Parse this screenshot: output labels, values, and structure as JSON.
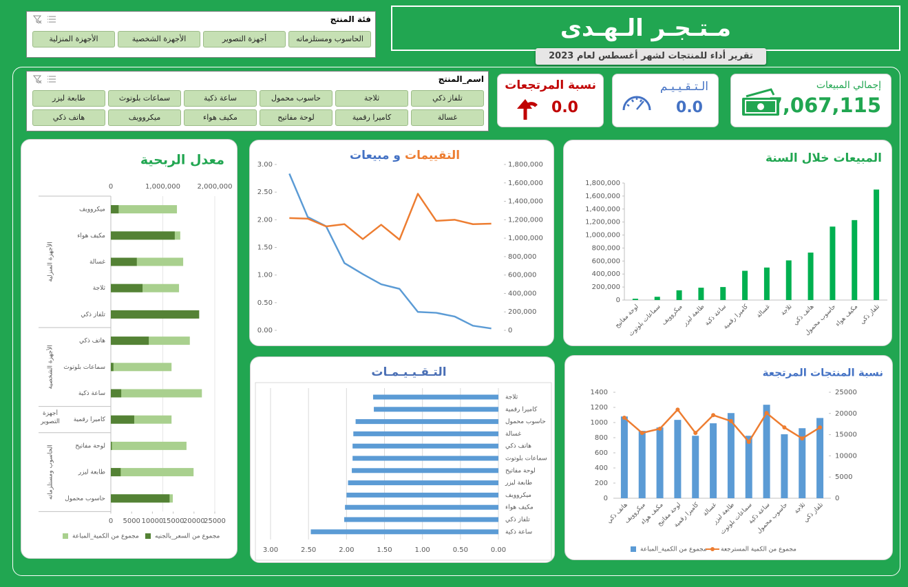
{
  "header": {
    "title": "مـتـجـر الـهـدى",
    "subtitle": "تقرير أداء للمنتجات لشهر أغسطس لعام 2023"
  },
  "slicers": [
    {
      "title": "فئة المنتج",
      "items": [
        "الحاسوب ومستلزماته",
        "أجهزة التصوير",
        "الأجهزة الشخصية",
        "الأجهزة المنزلية"
      ]
    },
    {
      "title": "اسم_المنتج",
      "items": [
        "تلفاز ذكي",
        "ثلاجة",
        "حاسوب محمول",
        "ساعة ذكية",
        "سماعات بلوتوث",
        "طابعة ليزر",
        "غسالة",
        "كاميرا رقمية",
        "لوحة مفاتيح",
        "مكيف هواء",
        "ميكروويف",
        "هاتف ذكي"
      ]
    }
  ],
  "kpis": [
    {
      "label": "إجمالي المبيعات",
      "value": "7,067,115"
    },
    {
      "label": "الـتـقـيـيـم",
      "value": "0.0"
    },
    {
      "label": "نسبة المرتجعات",
      "value": "0.0"
    }
  ],
  "chart_data": [
    {
      "type": "bar",
      "title": "المبيعات خلال السنة",
      "title_color": "#21a651",
      "categories": [
        "لوحة مفاتيح",
        "سماعات بلوتوث",
        "ميكروويف",
        "طابعة ليزر",
        "ساعة ذكية",
        "كاميرا رقمية",
        "غسالة",
        "ثلاجة",
        "هاتف ذكي",
        "حاسوب محمول",
        "مكيف هواء",
        "تلفاز ذكي"
      ],
      "values": [
        20000,
        50000,
        150000,
        190000,
        200000,
        450000,
        500000,
        610000,
        730000,
        1130000,
        1230000,
        1700000
      ],
      "color": "#00b050",
      "ylim": [
        0,
        1800000
      ],
      "yticks": [
        0,
        {
          "value": 200000,
          "label": "200,000"
        },
        {
          "value": 400000,
          "label": "400,000"
        },
        {
          "value": 600000,
          "label": "600,000"
        },
        {
          "value": 800000,
          "label": "800,000"
        },
        {
          "value": 1000000,
          "label": "1,000,000"
        },
        {
          "value": 1200000,
          "label": "1,200,000"
        },
        {
          "value": 1400000,
          "label": "1,400,000"
        },
        {
          "value": 1600000,
          "label": "1,600,000"
        },
        {
          "value": 1800000,
          "label": "1,800,000"
        }
      ]
    },
    {
      "type": "line",
      "title_parts": [
        {
          "text": "التقييمات",
          "color": "#ed7d31"
        },
        {
          "text": "و مبيعات",
          "color": "#4472c4"
        }
      ],
      "categories": [
        null,
        null,
        null,
        null,
        null,
        null,
        null,
        null,
        null,
        null,
        null,
        null
      ],
      "series": [
        {
          "color": "#5b9bd5",
          "axis": "y2",
          "values": [
            1700000,
            1230000,
            1130000,
            730000,
            610000,
            500000,
            450000,
            200000,
            190000,
            150000,
            50000,
            20000
          ]
        },
        {
          "color": "#ed7d31",
          "values": [
            2.03,
            2.02,
            1.88,
            1.92,
            1.65,
            1.91,
            1.64,
            2.47,
            1.98,
            2.0,
            1.92,
            1.93
          ]
        }
      ],
      "ylim": [
        0,
        3
      ],
      "yticks": [
        {
          "value": 0,
          "label": "0.00"
        },
        {
          "value": 0.5,
          "label": "0.50"
        },
        {
          "value": 1,
          "label": "1.00"
        },
        {
          "value": 1.5,
          "label": "1.50"
        },
        {
          "value": 2,
          "label": "2.00"
        },
        {
          "value": 2.5,
          "label": "2.50"
        },
        {
          "value": 3,
          "label": "3.00"
        }
      ],
      "y2lim": [
        0,
        1800000
      ],
      "y2ticks": [
        0,
        {
          "value": 200000,
          "label": "200,000"
        },
        {
          "value": 400000,
          "label": "400,000"
        },
        {
          "value": 600000,
          "label": "600,000"
        },
        {
          "value": 800000,
          "label": "800,000"
        },
        {
          "value": 1000000,
          "label": "1,000,000"
        },
        {
          "value": 1200000,
          "label": "1,200,000"
        },
        {
          "value": 1400000,
          "label": "1,400,000"
        },
        {
          "value": 1600000,
          "label": "1,600,000"
        },
        {
          "value": 1800000,
          "label": "1,800,000"
        }
      ]
    },
    {
      "type": "barh",
      "title": "التـقـيـيـمـات",
      "title_color": "#4a6fb5",
      "categories": [
        "ثلاجة",
        "كاميرا رقمية",
        "حاسوب محمول",
        "غسالة",
        "هاتف ذكي",
        "سماعات بلوتوث",
        "لوحة مفاتيح",
        "طابعة ليزر",
        "ميكروويف",
        "مكيف هواء",
        "تلفاز ذكي",
        "ساعة ذكية"
      ],
      "values": [
        1.65,
        1.64,
        1.88,
        1.91,
        1.92,
        1.92,
        1.93,
        1.98,
        2.0,
        2.02,
        2.03,
        2.47
      ],
      "color": "#5b9bd5",
      "xlim": [
        0,
        3
      ],
      "reversed": true,
      "grid": true,
      "xticks": [
        {
          "value": 3,
          "label": "3.00"
        },
        {
          "value": 2.5,
          "label": "2.50"
        },
        {
          "value": 2,
          "label": "2.00"
        },
        {
          "value": 1.5,
          "label": "1.50"
        },
        {
          "value": 1,
          "label": "1.00"
        },
        {
          "value": 0.5,
          "label": "0.50"
        },
        {
          "value": 0,
          "label": "0.00"
        }
      ]
    },
    {
      "type": "combo",
      "title": "نسبة  المنتجات المرتجعة",
      "title_color": "#4472c4",
      "categories": [
        "هاتف ذكي",
        "ميكروويف",
        "مكيف هواء",
        "لوحة مفاتيح",
        "كاميرا رقمية",
        "غسالة",
        "طابعة ليزر",
        "سماعات بلوتوث",
        "ساعة ذكية",
        "حاسوب محمول",
        "ثلاجة",
        "تلفاز ذكي"
      ],
      "series": [
        {
          "name": "مجموع من الكمية_المباعة",
          "type": "bar",
          "color": "#5b9bd5",
          "values": [
            1080,
            890,
            935,
            1035,
            825,
            990,
            1125,
            825,
            1235,
            845,
            925,
            1060
          ]
        },
        {
          "name": "مجموع من الكمية المسترجعة",
          "type": "line",
          "color": "#ed7d31",
          "axis": "y2",
          "values": [
            19000,
            15400,
            16400,
            20900,
            15400,
            19600,
            18200,
            13300,
            20100,
            16700,
            14100,
            16700
          ]
        }
      ],
      "ylim": [
        0,
        1400
      ],
      "yticks": [
        0,
        200,
        400,
        600,
        800,
        1000,
        1200,
        1400
      ],
      "y2lim": [
        0,
        25000
      ],
      "y2ticks": [
        0,
        5000,
        10000,
        15000,
        20000,
        25000
      ],
      "legend": "bottom"
    },
    {
      "type": "barh",
      "title": "معدل الربحية",
      "title_color": "#21a651",
      "groups": [
        {
          "name": "الأجهزة المنزلية",
          "categories": [
            "ميكروويف",
            "مكيف هواء",
            "غسالة",
            "ثلاجة",
            "تلفاز ذكي"
          ]
        },
        {
          "name": "الأجهزة الشخصية",
          "categories": [
            "هاتف ذكي",
            "سماعات بلوتوث",
            "ساعة ذكية"
          ]
        },
        {
          "name": "أجهزة التصوير",
          "categories": [
            "كاميرا رقمية"
          ]
        },
        {
          "name": "الحاسوب ومستلزماته",
          "categories": [
            "لوحة مفاتيح",
            "طابعة ليزر",
            "حاسوب محمول"
          ]
        }
      ],
      "series": [
        {
          "name": "مجموع من الكمية_المباعة",
          "color": "#a9d08e",
          "values": [
            15900,
            16700,
            17400,
            16400,
            20500,
            19000,
            14600,
            21900,
            14600,
            18200,
            19900,
            14900
          ]
        },
        {
          "name": "مجموع من السعر_بالجنيه",
          "color": "#548235",
          "axis": "x2",
          "values": [
            150000,
            1230000,
            500000,
            610000,
            1700000,
            730000,
            50000,
            200000,
            450000,
            20000,
            190000,
            1130000
          ]
        }
      ],
      "xlim": [
        0,
        25000
      ],
      "xticks": [
        0,
        5000,
        10000,
        15000,
        20000,
        25000
      ],
      "x2lim": [
        0,
        2000000
      ],
      "x2ticks": [
        0,
        {
          "value": 1000000,
          "label": "1,000,000"
        },
        {
          "value": 2000000,
          "label": "2,000,000"
        }
      ],
      "legend": "bottom"
    }
  ]
}
